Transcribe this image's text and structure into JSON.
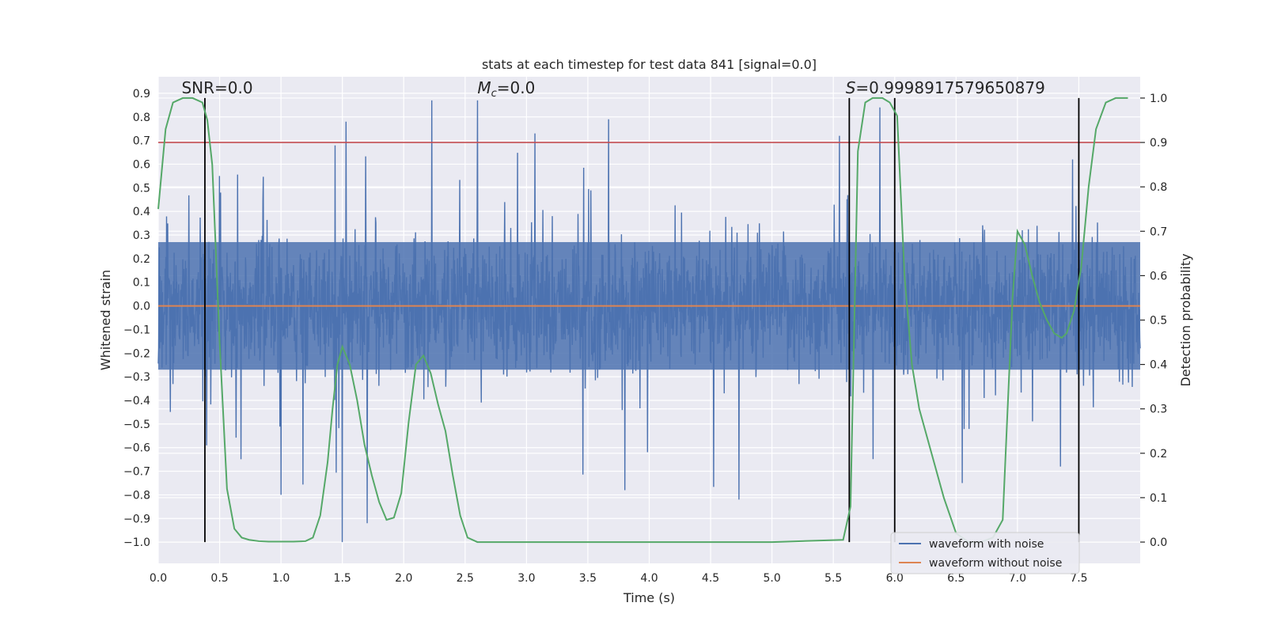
{
  "chart_data": {
    "type": "line",
    "title": "stats at each timestep for test data 841 [signal=0.0]",
    "xlabel": "Time (s)",
    "ylabel": "Whitened strain",
    "y2label": "Detection probability",
    "xlim": [
      0.0,
      8.0
    ],
    "ylim": [
      -1.09,
      0.97
    ],
    "y2lim": [
      -0.048,
      1.048
    ],
    "x_ticks": [
      0.0,
      0.5,
      1.0,
      1.5,
      2.0,
      2.5,
      3.0,
      3.5,
      4.0,
      4.5,
      5.0,
      5.5,
      6.0,
      6.5,
      7.0,
      7.5
    ],
    "x_tick_labels": [
      "0.0",
      "0.5",
      "1.0",
      "1.5",
      "2.0",
      "2.5",
      "3.0",
      "3.5",
      "4.0",
      "4.5",
      "5.0",
      "5.5",
      "6.0",
      "6.5",
      "7.0",
      "7.5"
    ],
    "y_ticks": [
      -1.0,
      -0.9,
      -0.8,
      -0.7,
      -0.6,
      -0.5,
      -0.4,
      -0.3,
      -0.2,
      -0.1,
      0.0,
      0.1,
      0.2,
      0.3,
      0.4,
      0.5,
      0.6,
      0.7,
      0.8,
      0.9
    ],
    "y_tick_labels": [
      "−1.0",
      "−0.9",
      "−0.8",
      "−0.7",
      "−0.6",
      "−0.5",
      "−0.4",
      "−0.3",
      "−0.2",
      "−0.1",
      "0.0",
      "0.1",
      "0.2",
      "0.3",
      "0.4",
      "0.5",
      "0.6",
      "0.7",
      "0.8",
      "0.9"
    ],
    "y2_ticks": [
      0.0,
      0.1,
      0.2,
      0.3,
      0.4,
      0.5,
      0.6,
      0.7,
      0.8,
      0.9,
      1.0
    ],
    "y2_tick_labels": [
      "0.0",
      "0.1",
      "0.2",
      "0.3",
      "0.4",
      "0.5",
      "0.6",
      "0.7",
      "0.8",
      "0.9",
      "1.0"
    ],
    "annotations": {
      "snr": "SNR=0.0",
      "mc_symbol": "M",
      "mc_sub": "c",
      "mc_value": "=0.0",
      "s_symbol": "S",
      "s_value": "=0.9998917579650879"
    },
    "series": [
      {
        "name": "waveform with noise",
        "color": "#4c72b0",
        "axis": "left",
        "style": "dense noise",
        "typical_range": [
          -0.3,
          0.3
        ],
        "spikes": [
          {
            "x": 1.53,
            "y": 0.78
          },
          {
            "x": 1.5,
            "y": -1.0
          },
          {
            "x": 2.23,
            "y": 0.87
          },
          {
            "x": 2.6,
            "y": 0.87
          },
          {
            "x": 3.67,
            "y": 0.79
          },
          {
            "x": 4.73,
            "y": -0.82
          },
          {
            "x": 5.88,
            "y": 0.84
          },
          {
            "x": 1.0,
            "y": -0.8
          },
          {
            "x": 0.5,
            "y": 0.55
          },
          {
            "x": 3.07,
            "y": 0.73
          },
          {
            "x": 5.55,
            "y": 0.72
          },
          {
            "x": 6.55,
            "y": -0.75
          },
          {
            "x": 7.35,
            "y": -0.68
          },
          {
            "x": 7.45,
            "y": 0.62
          },
          {
            "x": 3.8,
            "y": -0.78
          }
        ]
      },
      {
        "name": "waveform without noise",
        "color": "#dd8452",
        "axis": "left",
        "x": [
          0.0,
          8.0
        ],
        "y": [
          0.0,
          0.0
        ]
      },
      {
        "name": "detection probability",
        "color": "#55a868",
        "axis": "right",
        "x": [
          0.0,
          0.06,
          0.12,
          0.2,
          0.28,
          0.36,
          0.4,
          0.44,
          0.5,
          0.56,
          0.62,
          0.68,
          0.74,
          0.82,
          0.9,
          1.0,
          1.1,
          1.2,
          1.26,
          1.32,
          1.38,
          1.42,
          1.46,
          1.5,
          1.56,
          1.62,
          1.68,
          1.74,
          1.8,
          1.86,
          1.92,
          1.98,
          2.04,
          2.1,
          2.16,
          2.22,
          2.28,
          2.34,
          2.4,
          2.46,
          2.52,
          2.6,
          3.0,
          4.0,
          5.0,
          5.58,
          5.64,
          5.7,
          5.76,
          5.82,
          5.9,
          5.96,
          6.02,
          6.08,
          6.14,
          6.2,
          6.3,
          6.4,
          6.5,
          6.6,
          6.7,
          6.8,
          6.88,
          6.92,
          6.96,
          7.0,
          7.06,
          7.12,
          7.18,
          7.24,
          7.3,
          7.36,
          7.4,
          7.46,
          7.52,
          7.58,
          7.64,
          7.72,
          7.8,
          7.9
        ],
        "y": [
          0.75,
          0.93,
          0.99,
          1.0,
          1.0,
          0.99,
          0.95,
          0.85,
          0.45,
          0.12,
          0.03,
          0.01,
          0.005,
          0.002,
          0.001,
          0.001,
          0.001,
          0.002,
          0.01,
          0.06,
          0.18,
          0.3,
          0.4,
          0.44,
          0.4,
          0.32,
          0.22,
          0.15,
          0.09,
          0.05,
          0.055,
          0.11,
          0.27,
          0.4,
          0.42,
          0.38,
          0.31,
          0.25,
          0.15,
          0.06,
          0.01,
          0.0,
          0.0,
          0.0,
          0.0,
          0.005,
          0.08,
          0.88,
          0.99,
          1.0,
          1.0,
          0.99,
          0.96,
          0.6,
          0.4,
          0.3,
          0.2,
          0.1,
          0.02,
          0.0,
          0.0,
          0.01,
          0.05,
          0.3,
          0.55,
          0.7,
          0.67,
          0.6,
          0.54,
          0.5,
          0.47,
          0.46,
          0.47,
          0.52,
          0.62,
          0.8,
          0.93,
          0.99,
          1.0,
          1.0
        ]
      }
    ],
    "hlines": [
      {
        "axis": "right",
        "y": 0.9,
        "color": "#c44e52"
      }
    ],
    "vlines": [
      {
        "x": 0.38,
        "color": "#000000"
      },
      {
        "x": 5.63,
        "color": "#000000"
      },
      {
        "x": 6.0,
        "color": "#000000"
      },
      {
        "x": 7.5,
        "color": "#000000"
      }
    ],
    "legend": {
      "position": "lower-right",
      "entries": [
        {
          "label": "waveform with noise",
          "color": "#4c72b0"
        },
        {
          "label": "waveform without noise",
          "color": "#dd8452"
        }
      ]
    }
  }
}
